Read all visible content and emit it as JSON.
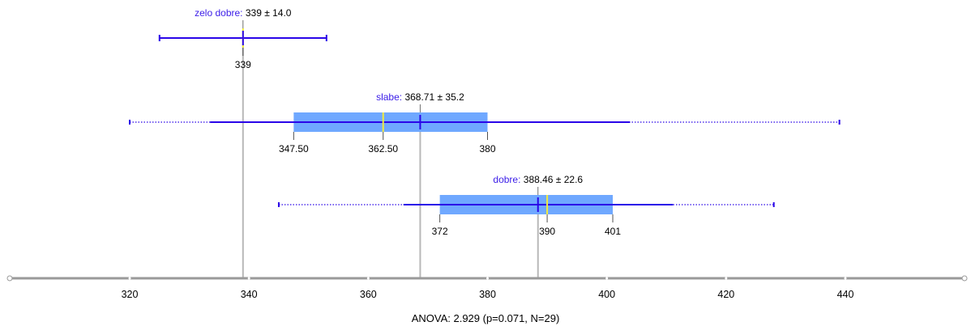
{
  "chart_data": {
    "type": "box",
    "footer": "ANOVA: 2.929 (p=0.071, N=29)",
    "x_axis": {
      "min": 300,
      "max": 458,
      "ticks": [
        320,
        340,
        360,
        380,
        400,
        420,
        440
      ]
    },
    "colors": {
      "box": "#6fa8ff",
      "whisker": "#2a06e8",
      "median": "#f2ea3c",
      "mean_line": "#b8b8b8",
      "axis": "#9a9a9a",
      "group_name": "#3a1ce8"
    },
    "groups": [
      {
        "name": "zelo dobre",
        "stats": "339 ± 14.0",
        "mean": 339,
        "sd": 14.0,
        "median": 339,
        "q1": null,
        "q3": null,
        "whisker_low": null,
        "whisker_high": null,
        "sd_low": 325,
        "sd_high": 353,
        "quartile_labels": [
          "339"
        ]
      },
      {
        "name": "slabe",
        "stats": "368.71 ± 35.2",
        "mean": 368.71,
        "sd": 35.2,
        "median": 362.5,
        "q1": 347.5,
        "q3": 380,
        "whisker_low": 320,
        "whisker_high": 439,
        "sd_low": 333.5,
        "sd_high": 403.9,
        "quartile_labels": [
          "347.50",
          "362.50",
          "380"
        ]
      },
      {
        "name": "dobre",
        "stats": "388.46 ± 22.6",
        "mean": 388.46,
        "sd": 22.6,
        "median": 390,
        "q1": 372,
        "q3": 401,
        "whisker_low": 345,
        "whisker_high": 428,
        "sd_low": 365.9,
        "sd_high": 411.1,
        "quartile_labels": [
          "372",
          "390",
          "401"
        ]
      }
    ]
  }
}
